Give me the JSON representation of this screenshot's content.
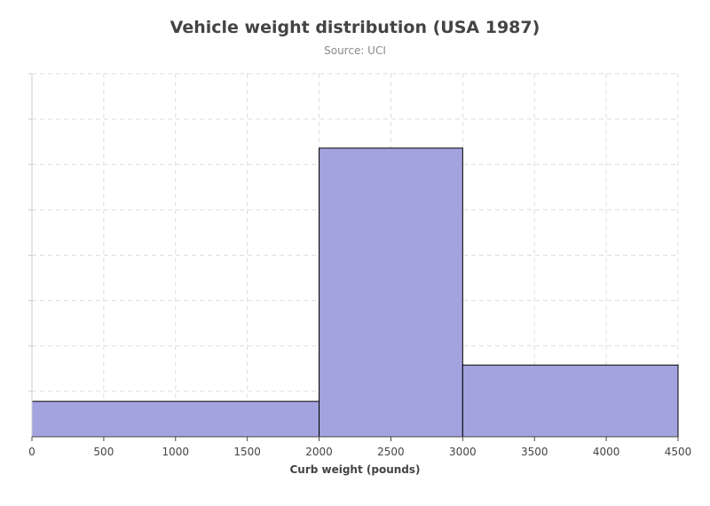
{
  "chart_data": {
    "type": "bar",
    "title": "Vehicle weight distribution (USA 1987)",
    "subtitle": "Source: UCI",
    "xlabel": "Curb weight (pounds)",
    "ylabel": "",
    "xlim": [
      0,
      4500
    ],
    "ylim": [
      0,
      40
    ],
    "x_ticks": [
      0,
      500,
      1000,
      1500,
      2000,
      2500,
      3000,
      3500,
      4000,
      4500
    ],
    "y_gridlines": [
      0,
      5,
      10,
      15,
      20,
      25,
      30,
      35,
      40
    ],
    "x_grid": true,
    "y_grid": true,
    "y_tick_labels_visible": false,
    "bins": [
      {
        "start": 0,
        "end": 2000,
        "value": 3.9
      },
      {
        "start": 2000,
        "end": 3000,
        "value": 31.8
      },
      {
        "start": 3000,
        "end": 4500,
        "value": 7.9
      }
    ],
    "bar_color": "#a3a3e0",
    "bar_border_color": "#000000",
    "grid_color": "#dddddd"
  }
}
